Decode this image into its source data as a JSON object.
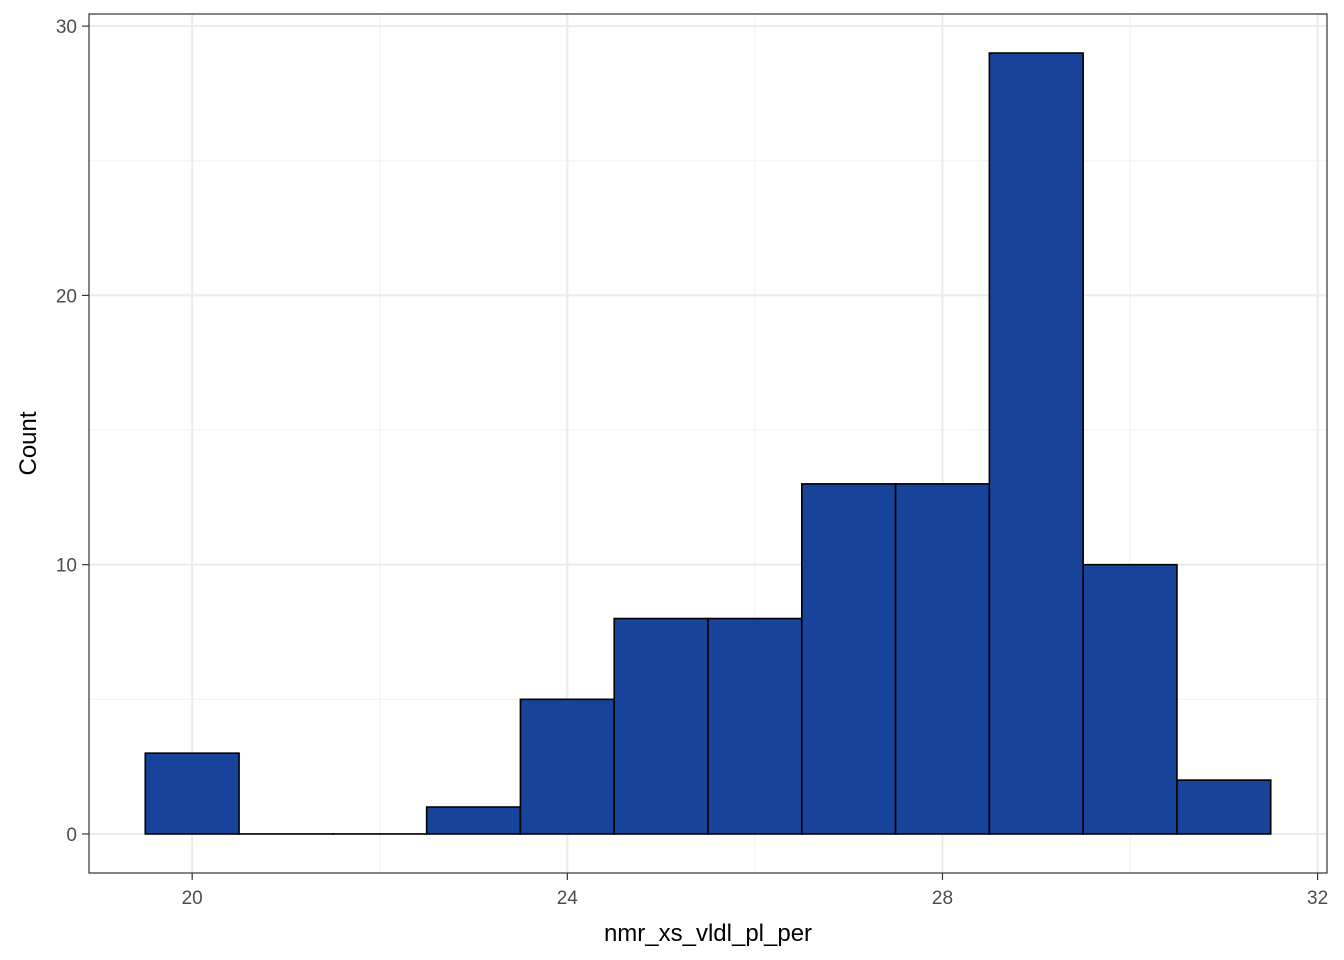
{
  "chart_data": {
    "type": "bar",
    "subtype": "histogram",
    "title": "",
    "xlabel": "nmr_xs_vldl_pl_per",
    "ylabel": "Count",
    "bin_width": 1,
    "bins": [
      {
        "x": 20,
        "count": 3
      },
      {
        "x": 21,
        "count": 0
      },
      {
        "x": 22,
        "count": 0
      },
      {
        "x": 23,
        "count": 1
      },
      {
        "x": 24,
        "count": 5
      },
      {
        "x": 25,
        "count": 8
      },
      {
        "x": 26,
        "count": 8
      },
      {
        "x": 27,
        "count": 13
      },
      {
        "x": 28,
        "count": 13
      },
      {
        "x": 29,
        "count": 29
      },
      {
        "x": 30,
        "count": 10
      },
      {
        "x": 31,
        "count": 2
      }
    ],
    "xlim": [
      18.9,
      32.1
    ],
    "ylim": [
      -1.45,
      30.45
    ],
    "x_ticks": [
      20,
      24,
      28,
      32
    ],
    "x_tick_labels": [
      "20",
      "24",
      "28",
      "32"
    ],
    "x_minor_ticks": [
      22,
      26,
      30
    ],
    "y_ticks": [
      0,
      10,
      20,
      30
    ],
    "y_tick_labels": [
      "0",
      "10",
      "20",
      "30"
    ],
    "y_minor_ticks": [
      5,
      15,
      25
    ],
    "grid": true,
    "legend": "none",
    "colors": {
      "bar_fill": "#17449a",
      "bar_stroke": "#000000",
      "grid_major": "#ebebeb",
      "grid_minor": "#f2f2f2",
      "panel_border": "#333333"
    }
  }
}
